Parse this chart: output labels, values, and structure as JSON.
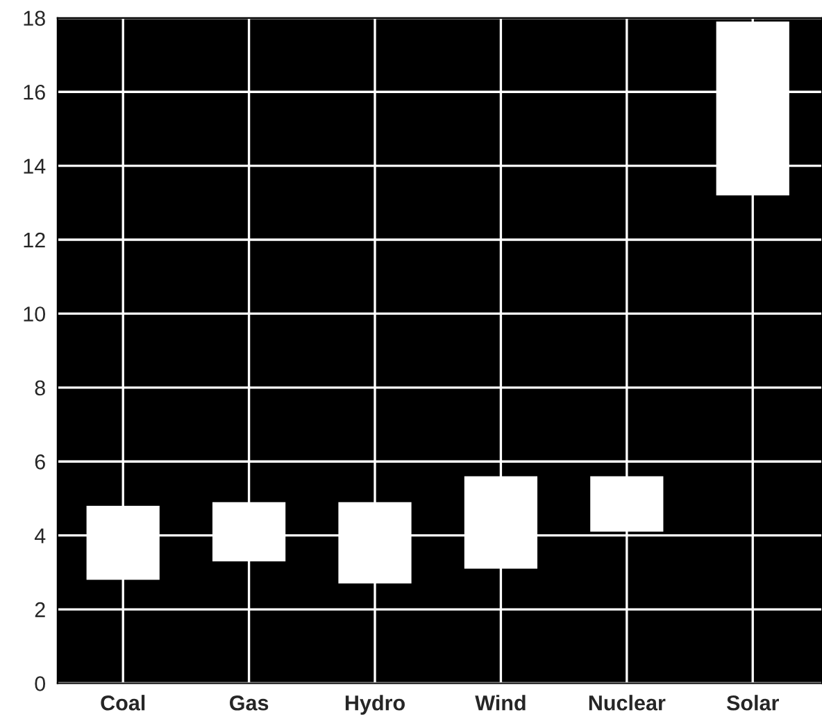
{
  "chart_data": {
    "type": "bar",
    "categories": [
      "Coal",
      "Gas",
      "Hydro",
      "Wind",
      "Nuclear",
      "Solar"
    ],
    "base": [
      2.8,
      3.3,
      2.7,
      3.1,
      4.1,
      13.2
    ],
    "values": [
      2.0,
      1.6,
      2.2,
      2.5,
      1.5,
      4.7
    ],
    "color": "#ffffff",
    "ylim": [
      0,
      18
    ],
    "yticks": [
      0,
      2,
      4,
      6,
      8,
      10,
      12,
      14,
      16,
      18
    ],
    "grid": true
  }
}
